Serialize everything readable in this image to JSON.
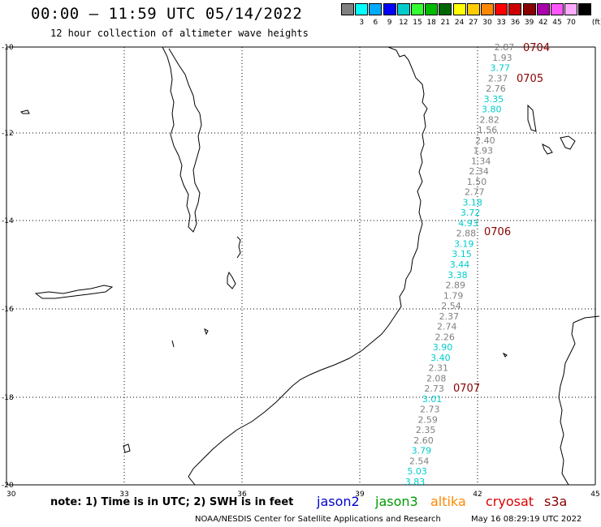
{
  "header": {
    "title": "00:00 – 11:59 UTC 05/14/2022",
    "subtitle": "12 hour collection of altimeter wave heights"
  },
  "legend": {
    "unit": "(ft)",
    "swatches": [
      {
        "color": "#808080",
        "label": ""
      },
      {
        "color": "#00ffff",
        "label": "3"
      },
      {
        "color": "#00aaff",
        "label": "6"
      },
      {
        "color": "#0000ff",
        "label": "9"
      },
      {
        "color": "#00cccc",
        "label": "12"
      },
      {
        "color": "#33ff33",
        "label": "15"
      },
      {
        "color": "#00bb00",
        "label": "18"
      },
      {
        "color": "#006600",
        "label": "21"
      },
      {
        "color": "#ffff00",
        "label": "24"
      },
      {
        "color": "#ffcc00",
        "label": "27"
      },
      {
        "color": "#ff8800",
        "label": "30"
      },
      {
        "color": "#ff0000",
        "label": "33"
      },
      {
        "color": "#cc0000",
        "label": "36"
      },
      {
        "color": "#880000",
        "label": "39"
      },
      {
        "color": "#aa00aa",
        "label": "42"
      },
      {
        "color": "#ff55ff",
        "label": "45"
      },
      {
        "color": "#ffaaff",
        "label": "70"
      },
      {
        "color": "#000000",
        "label": ""
      }
    ]
  },
  "axes": {
    "lon_labels": [
      "30",
      "33",
      "36",
      "39",
      "42",
      "45"
    ],
    "lat_labels": [
      "-10",
      "-12",
      "-14",
      "-16",
      "-18",
      "-20"
    ]
  },
  "measurements": [
    {
      "value": "2.87",
      "color": "#808080"
    },
    {
      "value": "1.93",
      "color": "#808080"
    },
    {
      "value": "3.77",
      "color": "#00cccc"
    },
    {
      "value": "2.37",
      "color": "#808080"
    },
    {
      "value": "2.76",
      "color": "#808080"
    },
    {
      "value": "3.35",
      "color": "#00cccc"
    },
    {
      "value": "3.80",
      "color": "#00cccc"
    },
    {
      "value": "2.82",
      "color": "#808080"
    },
    {
      "value": "1.56",
      "color": "#808080"
    },
    {
      "value": "2.40",
      "color": "#808080"
    },
    {
      "value": "1.93",
      "color": "#808080"
    },
    {
      "value": "1.34",
      "color": "#808080"
    },
    {
      "value": "2.34",
      "color": "#808080"
    },
    {
      "value": "1.50",
      "color": "#808080"
    },
    {
      "value": "2.77",
      "color": "#808080"
    },
    {
      "value": "3.18",
      "color": "#00cccc"
    },
    {
      "value": "3.72",
      "color": "#00cccc"
    },
    {
      "value": "4.93",
      "color": "#00cccc"
    },
    {
      "value": "2.88",
      "color": "#808080"
    },
    {
      "value": "3.19",
      "color": "#00cccc"
    },
    {
      "value": "3.15",
      "color": "#00cccc"
    },
    {
      "value": "3.44",
      "color": "#00cccc"
    },
    {
      "value": "3.38",
      "color": "#00cccc"
    },
    {
      "value": "2.89",
      "color": "#808080"
    },
    {
      "value": "1.79",
      "color": "#808080"
    },
    {
      "value": "2.54",
      "color": "#808080"
    },
    {
      "value": "2.37",
      "color": "#808080"
    },
    {
      "value": "2.74",
      "color": "#808080"
    },
    {
      "value": "2.26",
      "color": "#808080"
    },
    {
      "value": "3.90",
      "color": "#00cccc"
    },
    {
      "value": "3.40",
      "color": "#00cccc"
    },
    {
      "value": "2.31",
      "color": "#808080"
    },
    {
      "value": "2.08",
      "color": "#808080"
    },
    {
      "value": "2.73",
      "color": "#808080"
    },
    {
      "value": "3.01",
      "color": "#00cccc"
    },
    {
      "value": "2.73",
      "color": "#808080"
    },
    {
      "value": "2.59",
      "color": "#808080"
    },
    {
      "value": "2.35",
      "color": "#808080"
    },
    {
      "value": "2.60",
      "color": "#808080"
    },
    {
      "value": "3.79",
      "color": "#00cccc"
    },
    {
      "value": "2.54",
      "color": "#808080"
    },
    {
      "value": "5.03",
      "color": "#00cccc"
    },
    {
      "value": "3.83",
      "color": "#00cccc"
    }
  ],
  "time_tags": [
    {
      "label": "0704"
    },
    {
      "label": "0705"
    },
    {
      "label": "0706"
    },
    {
      "label": "0707"
    }
  ],
  "footer": {
    "note": "note: 1) Time is in UTC; 2) SWH is in feet",
    "satellites": [
      {
        "name": "jason2",
        "color": "#0000cc"
      },
      {
        "name": "jason3",
        "color": "#009900"
      },
      {
        "name": "altika",
        "color": "#ff8800"
      },
      {
        "name": "cryosat",
        "color": "#dd0000"
      },
      {
        "name": "s3a",
        "color": "#880000"
      }
    ],
    "credit": "NOAA/NESDIS Center for Satellite Applications and Research",
    "timestamp": "May 16 08:29:19 UTC 2022"
  }
}
